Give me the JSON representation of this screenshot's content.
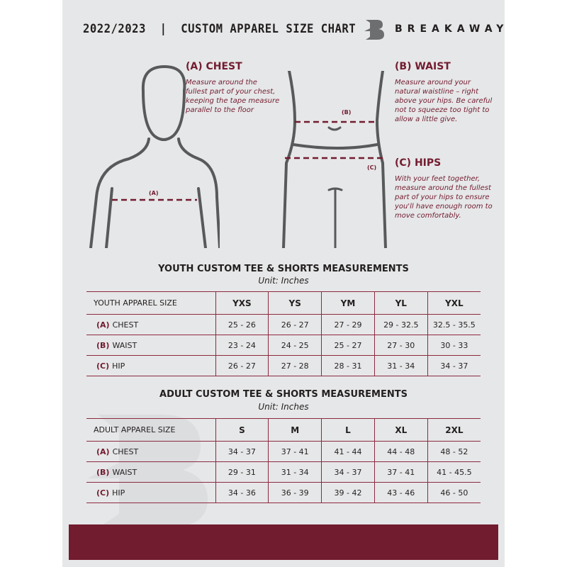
{
  "header": {
    "title": "2022/2023  |  CUSTOM APPAREL SIZE CHART",
    "brand": "BREAKAWAY",
    "logo_letter": "B"
  },
  "guide": {
    "chest": {
      "heading": "(A) CHEST",
      "label": "(A)",
      "text": "Measure around the fullest part of your chest, keeping the tape measure parallel to the floor"
    },
    "waist": {
      "heading": "(B) WAIST",
      "label": "(B)",
      "text": "Measure around your natural waistline – right above your hips. Be careful not to squeeze too tight to allow a little give."
    },
    "hips": {
      "heading": "(C) HIPS",
      "label": "(C)",
      "text": "With your feet together, measure around the fullest part of your hips to ensure you'll have enough room to move comfortably."
    }
  },
  "youth": {
    "title": "YOUTH CUSTOM TEE & SHORTS MEASUREMENTS",
    "unit": "Unit: Inches",
    "header": [
      "YOUTH APPAREL SIZE",
      "YXS",
      "YS",
      "YM",
      "YL",
      "YXL"
    ],
    "rows": [
      {
        "code": "(A)",
        "name": "CHEST",
        "values": [
          "25 - 26",
          "26 - 27",
          "27 - 29",
          "29 - 32.5",
          "32.5 - 35.5"
        ]
      },
      {
        "code": "(B)",
        "name": "WAIST",
        "values": [
          "23 - 24",
          "24 - 25",
          "25 - 27",
          "27 - 30",
          "30 - 33"
        ]
      },
      {
        "code": "(C)",
        "name": "HIP",
        "values": [
          "26 - 27",
          "27 - 28",
          "28 - 31",
          "31 - 34",
          "34 - 37"
        ]
      }
    ]
  },
  "adult": {
    "title": "ADULT CUSTOM TEE & SHORTS MEASUREMENTS",
    "unit": "Unit: Inches",
    "header": [
      "ADULT APPAREL SIZE",
      "S",
      "M",
      "L",
      "XL",
      "2XL"
    ],
    "rows": [
      {
        "code": "(A)",
        "name": "CHEST",
        "values": [
          "34 - 37",
          "37 - 41",
          "41 - 44",
          "44 - 48",
          "48 - 52"
        ]
      },
      {
        "code": "(B)",
        "name": "WAIST",
        "values": [
          "29 - 31",
          "31 - 34",
          "34 - 37",
          "37 - 41",
          "41 - 45.5"
        ]
      },
      {
        "code": "(C)",
        "name": "HIP",
        "values": [
          "34 - 36",
          "36 - 39",
          "39 - 42",
          "43 - 46",
          "46 - 50"
        ]
      }
    ]
  },
  "colors": {
    "accent": "#721c30",
    "background": "#e6e7e8",
    "text": "#231f20"
  }
}
